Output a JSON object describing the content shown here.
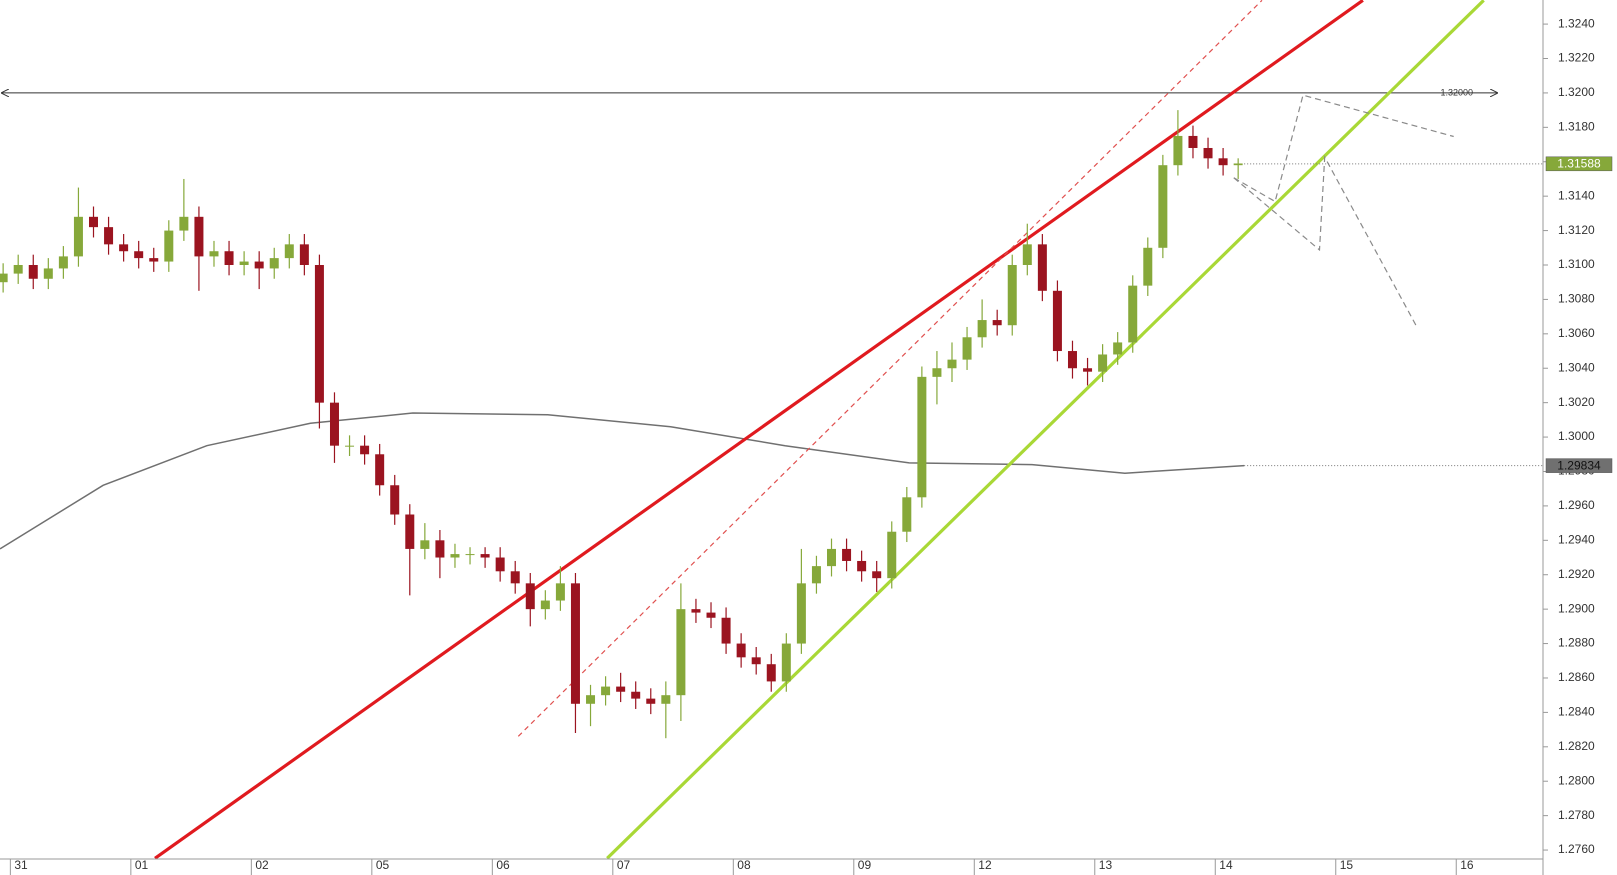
{
  "chart_data": {
    "type": "candlestick",
    "x": [
      -0.06,
      0.065,
      0.19,
      0.315,
      0.44,
      0.565,
      0.69,
      0.815,
      0.94,
      1.065,
      1.19,
      1.315,
      1.44,
      1.565,
      1.69,
      1.815,
      1.94,
      2.065,
      2.19,
      2.315,
      2.44,
      2.565,
      2.69,
      2.815,
      2.94,
      3.065,
      3.19,
      3.315,
      3.44,
      3.565,
      3.69,
      3.815,
      3.94,
      4.065,
      4.19,
      4.315,
      4.44,
      4.565,
      4.69,
      4.815,
      4.94,
      5.065,
      5.19,
      5.315,
      5.44,
      5.565,
      5.69,
      5.815,
      5.94,
      6.065,
      6.19,
      6.315,
      6.44,
      6.565,
      6.69,
      6.815,
      6.94,
      7.065,
      7.19,
      7.315,
      7.44,
      7.565,
      7.69,
      7.815,
      7.94,
      8.065,
      8.19,
      8.315,
      8.44,
      8.565,
      8.69,
      8.815,
      8.94,
      9.065,
      9.19,
      9.315,
      9.44,
      9.565,
      9.69,
      9.815,
      9.94,
      10.065,
      10.19
    ],
    "open": [
      1.309,
      1.3095,
      1.31,
      1.3092,
      1.3098,
      1.3105,
      1.3128,
      1.3122,
      1.3112,
      1.3108,
      1.3104,
      1.3102,
      1.312,
      1.3128,
      1.3105,
      1.3108,
      1.31,
      1.3102,
      1.3098,
      1.3104,
      1.3112,
      1.31,
      1.302,
      1.2995,
      1.2995,
      1.299,
      1.2972,
      1.2955,
      1.2935,
      1.294,
      1.293,
      1.2932,
      1.2932,
      1.293,
      1.2922,
      1.2915,
      1.29,
      1.2905,
      1.2915,
      1.2845,
      1.285,
      1.2855,
      1.2852,
      1.2848,
      1.2845,
      1.285,
      1.29,
      1.2898,
      1.2895,
      1.288,
      1.2872,
      1.2868,
      1.2858,
      1.288,
      1.2915,
      1.2925,
      1.2935,
      1.2928,
      1.2922,
      1.2918,
      1.2945,
      1.2965,
      1.3035,
      1.304,
      1.3045,
      1.3058,
      1.3068,
      1.3065,
      1.31,
      1.3112,
      1.3085,
      1.305,
      1.304,
      1.3038,
      1.3048,
      1.3055,
      1.3088,
      1.311,
      1.3158,
      1.3175,
      1.3168,
      1.3162,
      1.3158
    ],
    "high": [
      1.3101,
      1.3106,
      1.3106,
      1.3104,
      1.3111,
      1.3145,
      1.3134,
      1.3128,
      1.3118,
      1.3114,
      1.311,
      1.3126,
      1.315,
      1.3134,
      1.3114,
      1.3114,
      1.3108,
      1.3108,
      1.311,
      1.3118,
      1.3118,
      1.3106,
      1.3026,
      1.3001,
      1.3001,
      1.2996,
      1.2978,
      1.2961,
      1.295,
      1.2946,
      1.2938,
      1.2936,
      1.2936,
      1.2936,
      1.2928,
      1.2921,
      1.2911,
      1.2925,
      1.2921,
      1.2856,
      1.2861,
      1.2863,
      1.2858,
      1.2854,
      1.2858,
      1.2915,
      1.2906,
      1.2904,
      1.2901,
      1.2886,
      1.2878,
      1.2874,
      1.2886,
      1.2935,
      1.2931,
      1.2941,
      1.2941,
      1.2934,
      1.2928,
      1.2951,
      1.2971,
      1.3041,
      1.305,
      1.3055,
      1.3064,
      1.308,
      1.3074,
      1.3106,
      1.3124,
      1.3118,
      1.3091,
      1.3056,
      1.3046,
      1.3054,
      1.3061,
      1.3094,
      1.3116,
      1.3164,
      1.319,
      1.3181,
      1.3174,
      1.3168,
      1.3162
    ],
    "low": [
      1.3084,
      1.3089,
      1.3086,
      1.3086,
      1.3092,
      1.3099,
      1.3116,
      1.3106,
      1.3102,
      1.3098,
      1.3096,
      1.3096,
      1.3114,
      1.3085,
      1.3099,
      1.3094,
      1.3094,
      1.3086,
      1.3092,
      1.3098,
      1.3094,
      1.3005,
      1.2985,
      1.2989,
      1.2984,
      1.2966,
      1.2949,
      1.2908,
      1.2929,
      1.2918,
      1.2924,
      1.2926,
      1.2924,
      1.2916,
      1.2909,
      1.289,
      1.2894,
      1.2899,
      1.2828,
      1.2832,
      1.2844,
      1.2846,
      1.2842,
      1.2839,
      1.2825,
      1.2835,
      1.2892,
      1.2889,
      1.2874,
      1.2866,
      1.2862,
      1.2852,
      1.2852,
      1.2874,
      1.2909,
      1.2919,
      1.2922,
      1.2916,
      1.291,
      1.2912,
      1.2939,
      1.2959,
      1.3019,
      1.3032,
      1.3039,
      1.3052,
      1.3059,
      1.3059,
      1.3094,
      1.3079,
      1.3044,
      1.3034,
      1.303,
      1.3032,
      1.3042,
      1.3049,
      1.3082,
      1.3104,
      1.3152,
      1.3162,
      1.3156,
      1.3152,
      1.315
    ],
    "close": [
      1.3095,
      1.31,
      1.3092,
      1.3098,
      1.3105,
      1.3128,
      1.3122,
      1.3112,
      1.3108,
      1.3104,
      1.3102,
      1.312,
      1.3128,
      1.3105,
      1.3108,
      1.31,
      1.3102,
      1.3098,
      1.3104,
      1.3112,
      1.31,
      1.302,
      1.2995,
      1.2995,
      1.299,
      1.2972,
      1.2955,
      1.2935,
      1.294,
      1.293,
      1.2932,
      1.2932,
      1.293,
      1.2922,
      1.2915,
      1.29,
      1.2905,
      1.2915,
      1.2845,
      1.285,
      1.2855,
      1.2852,
      1.2848,
      1.2845,
      1.285,
      1.29,
      1.2898,
      1.2895,
      1.288,
      1.2872,
      1.2868,
      1.2858,
      1.288,
      1.2915,
      1.2925,
      1.2935,
      1.2928,
      1.2922,
      1.2918,
      1.2945,
      1.2965,
      1.3035,
      1.304,
      1.3045,
      1.3058,
      1.3068,
      1.3065,
      1.31,
      1.3112,
      1.3085,
      1.305,
      1.304,
      1.3038,
      1.3048,
      1.3055,
      1.3088,
      1.311,
      1.3158,
      1.3175,
      1.3168,
      1.3162,
      1.3158,
      1.3159
    ],
    "up_color": "#86a83a",
    "down_color": "#9b1420",
    "xlim": [
      -0.086,
      12.72
    ],
    "xticks": [
      {
        "value": 0,
        "label": "31"
      },
      {
        "value": 1,
        "label": "01"
      },
      {
        "value": 2,
        "label": "02"
      },
      {
        "value": 3,
        "label": "05"
      },
      {
        "value": 4,
        "label": "06"
      },
      {
        "value": 5,
        "label": "07"
      },
      {
        "value": 6,
        "label": "08"
      },
      {
        "value": 7,
        "label": "09"
      },
      {
        "value": 8,
        "label": "12"
      },
      {
        "value": 9,
        "label": "13"
      },
      {
        "value": 10,
        "label": "14"
      },
      {
        "value": 11,
        "label": "15"
      },
      {
        "value": 12,
        "label": "16"
      }
    ],
    "ylim": [
      1.27548,
      1.3254
    ],
    "yticks": [
      {
        "value": 1.276,
        "label": "1.2760"
      },
      {
        "value": 1.278,
        "label": "1.2780"
      },
      {
        "value": 1.28,
        "label": "1.2800"
      },
      {
        "value": 1.282,
        "label": "1.2820"
      },
      {
        "value": 1.284,
        "label": "1.2840"
      },
      {
        "value": 1.286,
        "label": "1.2860"
      },
      {
        "value": 1.288,
        "label": "1.2880"
      },
      {
        "value": 1.29,
        "label": "1.2900"
      },
      {
        "value": 1.292,
        "label": "1.2920"
      },
      {
        "value": 1.294,
        "label": "1.2940"
      },
      {
        "value": 1.296,
        "label": "1.2960"
      },
      {
        "value": 1.298,
        "label": "1.2980"
      },
      {
        "value": 1.3,
        "label": "1.3000"
      },
      {
        "value": 1.302,
        "label": "1.3020"
      },
      {
        "value": 1.304,
        "label": "1.3040"
      },
      {
        "value": 1.306,
        "label": "1.3060"
      },
      {
        "value": 1.308,
        "label": "1.3080"
      },
      {
        "value": 1.31,
        "label": "1.3100"
      },
      {
        "value": 1.312,
        "label": "1.3120"
      },
      {
        "value": 1.314,
        "label": "1.3140"
      },
      {
        "value": 1.316,
        "label": "1.3160"
      },
      {
        "value": 1.318,
        "label": "1.3180"
      },
      {
        "value": 1.32,
        "label": "1.3200"
      },
      {
        "value": 1.322,
        "label": "1.3220"
      },
      {
        "value": 1.324,
        "label": "1.3240"
      }
    ],
    "moving_average": {
      "x": [
        -0.086,
        0.77,
        1.63,
        2.49,
        3.34,
        4.46,
        5.48,
        6.43,
        7.46,
        8.48,
        9.25,
        10.24
      ],
      "values": [
        1.2935,
        1.2972,
        1.2995,
        1.3008,
        1.3014,
        1.3013,
        1.3006,
        1.2995,
        1.2985,
        1.2984,
        1.2979,
        1.29834
      ],
      "color": "#707070",
      "last": 1.29834
    },
    "last_price": 1.31588,
    "last_price_color": "#86a83a",
    "level": {
      "value": 1.32,
      "label": "1.32000",
      "color": "#333333"
    },
    "trendlines": [
      {
        "x": [
          1.2,
          11.225
        ],
        "values": [
          1.27552,
          1.32538
        ],
        "color": "#e01a1f",
        "dashed": false
      },
      {
        "x": [
          4.216,
          10.388
        ],
        "values": [
          1.28261,
          1.32538
        ],
        "color": "#e0504f",
        "dashed": true
      },
      {
        "x": [
          4.953,
          12.228
        ],
        "values": [
          1.27552,
          1.32538
        ],
        "color": "#a9d836",
        "dashed": false
      }
    ],
    "projections": [
      {
        "x": [
          10.154,
          10.497,
          10.728,
          11.979
        ],
        "values": [
          1.31507,
          1.31369,
          1.31987,
          1.31747
        ],
        "color": "#8a8a8a"
      },
      {
        "x": [
          10.154,
          10.865,
          10.908,
          11.679
        ],
        "values": [
          1.31507,
          1.31088,
          1.31627,
          1.30632
        ],
        "color": "#8a8a8a"
      }
    ]
  }
}
